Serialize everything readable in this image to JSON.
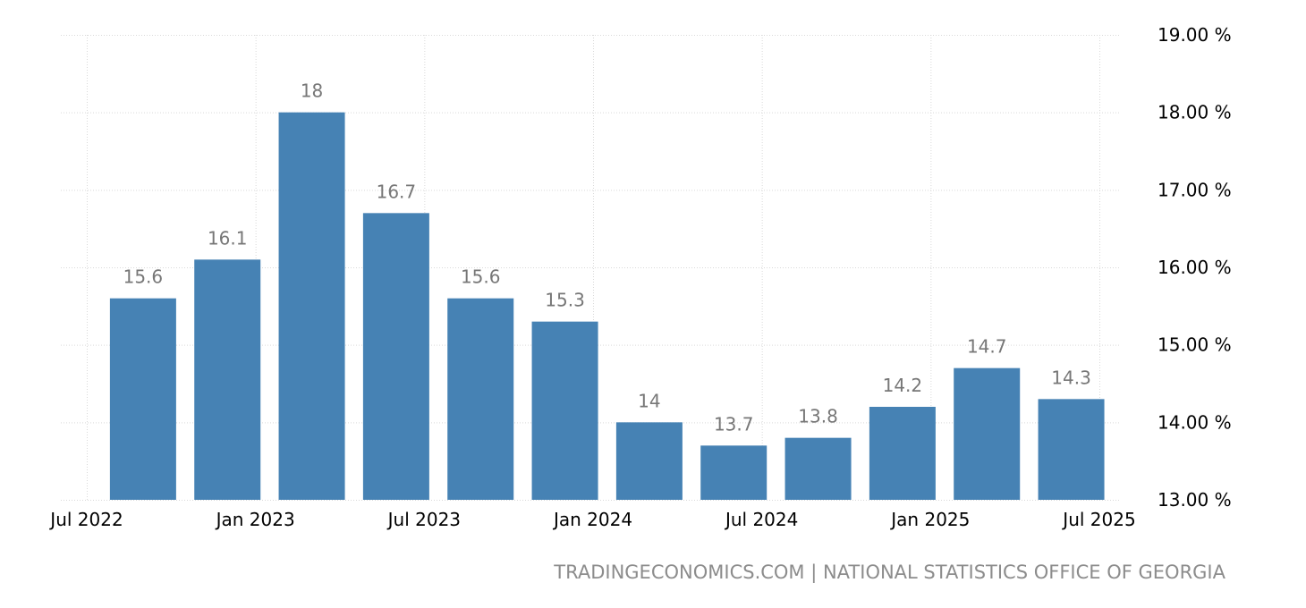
{
  "source_text": "TRADINGECONOMICS.COM | NATIONAL STATISTICS OFFICE OF GEORGIA",
  "colors": {
    "bar": "#4682b4",
    "label": "#777777",
    "grid": "#d9d9d9",
    "source": "#8c8c8c"
  },
  "chart_data": {
    "type": "bar",
    "title": "",
    "xlabel": "",
    "ylabel": "",
    "x_axis": "date",
    "categories": [
      "2022-09",
      "2022-12",
      "2023-03",
      "2023-06",
      "2023-09",
      "2023-12",
      "2024-03",
      "2024-06",
      "2024-09",
      "2024-12",
      "2025-03",
      "2025-06"
    ],
    "values": [
      15.6,
      16.1,
      18,
      16.7,
      15.6,
      15.3,
      14,
      13.7,
      13.8,
      14.2,
      14.7,
      14.3
    ],
    "value_labels": [
      "15.6",
      "16.1",
      "18",
      "16.7",
      "15.6",
      "15.3",
      "14",
      "13.7",
      "13.8",
      "14.2",
      "14.7",
      "14.3"
    ],
    "ylim": [
      13,
      19
    ],
    "y_ticks": [
      13,
      14,
      15,
      16,
      17,
      18,
      19
    ],
    "y_tick_labels": [
      "13.00 %",
      "14.00 %",
      "15.00 %",
      "16.00 %",
      "17.00 %",
      "18.00 %",
      "19.00 %"
    ],
    "x_tick_dates": [
      "2022-07",
      "2023-01",
      "2023-07",
      "2024-01",
      "2024-07",
      "2025-01",
      "2025-07"
    ],
    "x_tick_labels": [
      "Jul 2022",
      "Jan 2023",
      "Jul 2023",
      "Jan 2024",
      "Jul 2024",
      "Jan 2025",
      "Jul 2025"
    ],
    "y_axis_position": "right",
    "grid": true,
    "legend": "none"
  }
}
